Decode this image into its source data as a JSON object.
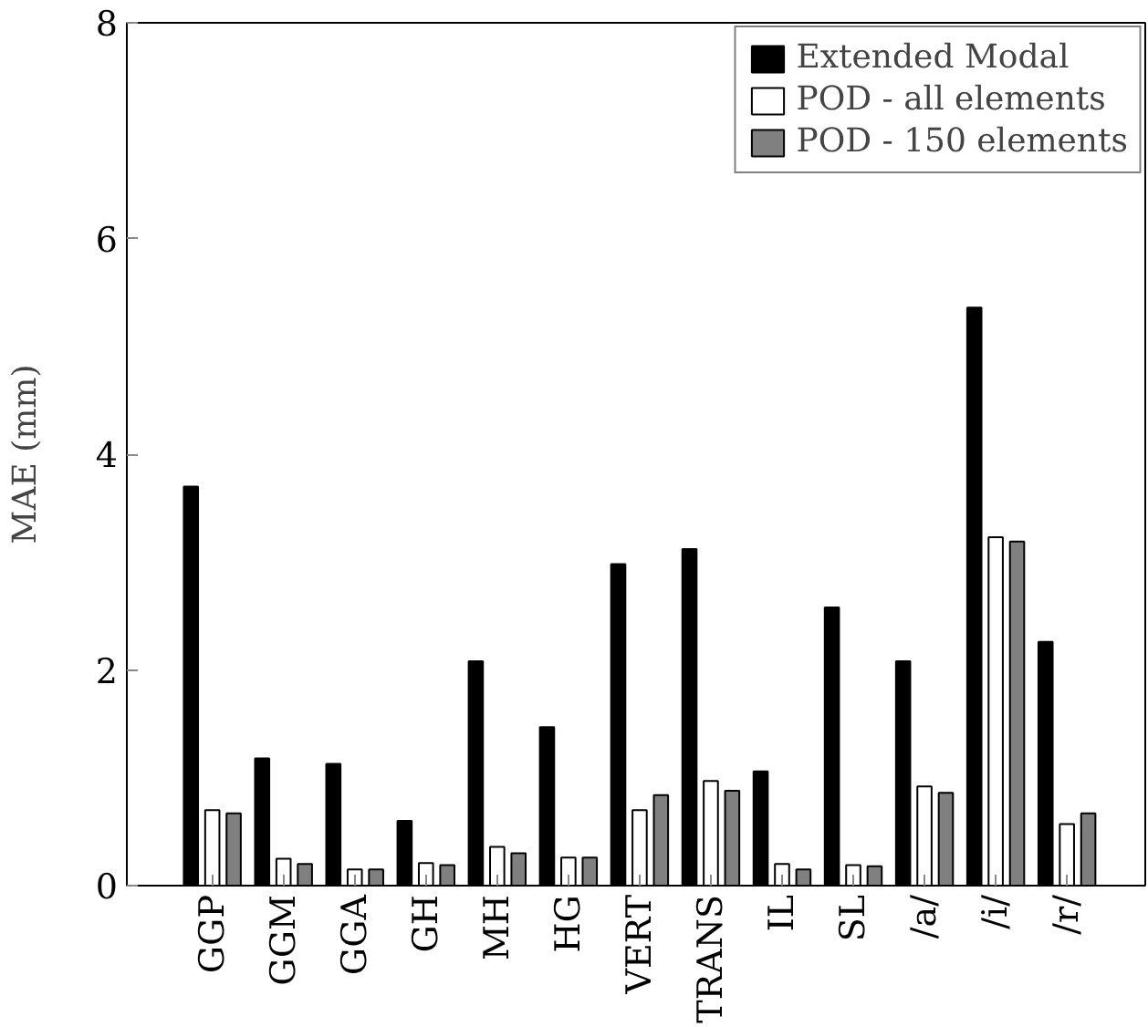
{
  "chart_data": {
    "type": "bar",
    "ylabel": "MAE (mm)",
    "categories": [
      "GGP",
      "GGM",
      "GGA",
      "GH",
      "MH",
      "HG",
      "VERT",
      "TRANS",
      "IL",
      "SL",
      "/a/",
      "/i/",
      "/r/"
    ],
    "series": [
      {
        "name": "Extended Modal",
        "color": "#000000",
        "values": [
          3.7,
          1.18,
          1.13,
          0.6,
          2.08,
          1.47,
          2.98,
          3.12,
          1.06,
          2.58,
          2.08,
          5.36,
          2.26
        ]
      },
      {
        "name": "POD - all elements",
        "color": "#ffffff",
        "values": [
          0.7,
          0.25,
          0.15,
          0.21,
          0.36,
          0.26,
          0.7,
          0.97,
          0.2,
          0.19,
          0.92,
          3.23,
          0.57
        ]
      },
      {
        "name": "POD - 150 elements",
        "color": "#808080",
        "values": [
          0.67,
          0.2,
          0.15,
          0.19,
          0.3,
          0.26,
          0.84,
          0.88,
          0.15,
          0.18,
          0.86,
          3.19,
          0.67
        ]
      }
    ],
    "ylim": [
      0,
      8
    ],
    "yticks": [
      0,
      2,
      4,
      6,
      8
    ],
    "grid": false,
    "legend": "top right"
  }
}
